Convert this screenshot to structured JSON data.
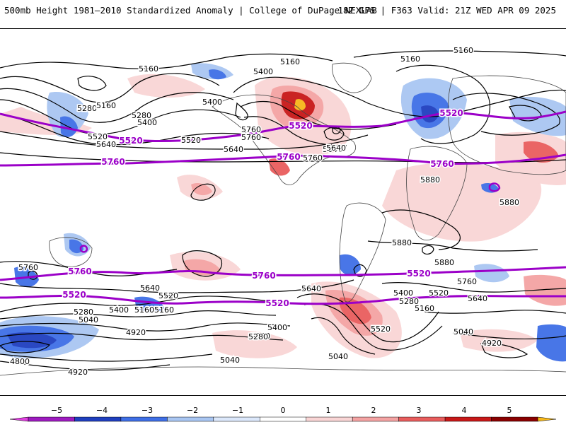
{
  "header": {
    "title_left": "500mb Height 1981–2010 Standardized Anomaly | College of DuPage NEXLAB",
    "title_right": "18Z GFS | F363 Valid: 21Z WED APR 09 2025"
  },
  "map": {
    "contour_labels_black": [
      "5160",
      "5160",
      "5160",
      "5160",
      "5280",
      "5280",
      "5400",
      "5400",
      "5520",
      "5640",
      "5640",
      "5760",
      "5760",
      "5640",
      "5520",
      "5400",
      "5160",
      "5640",
      "5760",
      "5880",
      "5880",
      "5880",
      "5880",
      "5760",
      "5280",
      "5400",
      "5520",
      "5160",
      "5640",
      "5400",
      "5280",
      "5040",
      "4920",
      "5280",
      "5160",
      "5400",
      "5040",
      "5280",
      "5400",
      "5160",
      "5520",
      "5040",
      "4920",
      "4800",
      "4920",
      "5760",
      "5640",
      "5520",
      "5640",
      "5040"
    ],
    "contour_labels_purple": [
      "5520",
      "5520",
      "5520",
      "5760",
      "5760",
      "5760",
      "5760",
      "5760",
      "5520",
      "5520",
      "5520"
    ],
    "colors": {
      "contour": "#000000",
      "highlight_contour": "#9b00c8",
      "coast": "#444444"
    }
  },
  "colorbar": {
    "ticks": [
      "−5",
      "−4",
      "−3",
      "−2",
      "−1",
      "0",
      "1",
      "2",
      "3",
      "4",
      "5"
    ],
    "colors": [
      "#e03fe0",
      "#9e1bc0",
      "#1f3fbf",
      "#3f6fe6",
      "#a9c6f2",
      "#dce8fb",
      "#ffffff",
      "#f9d5d5",
      "#f4a3a3",
      "#e95d5d",
      "#c81818",
      "#8a0000",
      "#f7b81a"
    ]
  }
}
